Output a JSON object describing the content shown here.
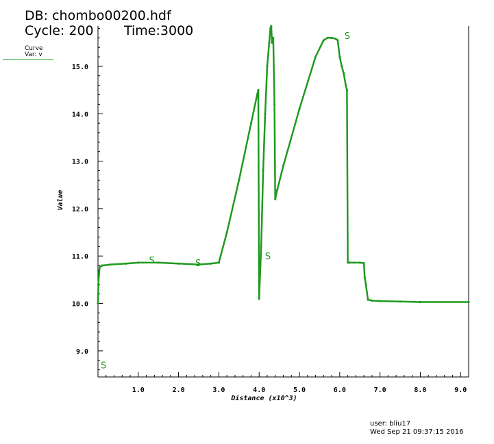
{
  "header": {
    "db": "DB: chombo00200.hdf",
    "cycle": "Cycle: 200",
    "time": "Time:3000"
  },
  "legend": {
    "curve": "Curve",
    "var": "Var: v",
    "color": "#1e9a1e"
  },
  "footer": {
    "user": "user: bliu17",
    "date": "Wed Sep 21 09:37:15 2016"
  },
  "chart_data": {
    "type": "line",
    "xlabel": "Distance (x10^3)",
    "ylabel": "Value",
    "xlim": [
      0,
      9.2
    ],
    "ylim": [
      8.45,
      15.85
    ],
    "xticks": [
      "1.0",
      "2.0",
      "3.0",
      "4.0",
      "5.0",
      "6.0",
      "7.0",
      "8.0",
      "9.0"
    ],
    "yticks": [
      "9.0",
      "10.0",
      "11.0",
      "12.0",
      "13.0",
      "14.0",
      "15.0"
    ],
    "grid": false,
    "color": "#1e9a1e",
    "series": [
      {
        "x": [
          0.0,
          0.01,
          0.03,
          0.05,
          0.1,
          0.3,
          0.7,
          1.0,
          1.5,
          2.0,
          2.5,
          2.8,
          3.0,
          3.2,
          3.5,
          3.8,
          3.95,
          3.98,
          4.0,
          4.05,
          4.1,
          4.15,
          4.2,
          4.25,
          4.28,
          4.3,
          4.32,
          4.35,
          4.38,
          4.4,
          4.45,
          4.6,
          5.0,
          5.4,
          5.6,
          5.7,
          5.8,
          5.9,
          5.95,
          6.0,
          6.05,
          6.1,
          6.15,
          6.18,
          6.2,
          6.25,
          6.35,
          6.5,
          6.6,
          6.62,
          6.65,
          6.7,
          6.8,
          7.0,
          7.5,
          8.0,
          9.2
        ],
        "y": [
          10.0,
          10.4,
          10.7,
          10.77,
          10.8,
          10.82,
          10.84,
          10.86,
          10.86,
          10.84,
          10.82,
          10.84,
          10.86,
          11.5,
          12.6,
          13.8,
          14.4,
          14.5,
          10.1,
          11.2,
          12.8,
          14.0,
          15.0,
          15.5,
          15.8,
          15.85,
          15.5,
          15.6,
          14.2,
          12.2,
          12.4,
          12.9,
          14.1,
          15.2,
          15.55,
          15.6,
          15.6,
          15.58,
          15.55,
          15.2,
          15.0,
          14.85,
          14.6,
          14.5,
          10.86,
          10.86,
          10.86,
          10.86,
          10.85,
          10.55,
          10.4,
          10.08,
          10.06,
          10.05,
          10.04,
          10.03,
          10.03
        ]
      }
    ],
    "markers": [
      {
        "label": "S",
        "x": 0.05,
        "y": 8.7
      },
      {
        "label": "S",
        "x": 1.25,
        "y": 10.92
      },
      {
        "label": "S",
        "x": 2.4,
        "y": 10.86
      },
      {
        "label": "S",
        "x": 4.13,
        "y": 11.0
      },
      {
        "label": "S",
        "x": 6.1,
        "y": 15.65
      }
    ]
  }
}
